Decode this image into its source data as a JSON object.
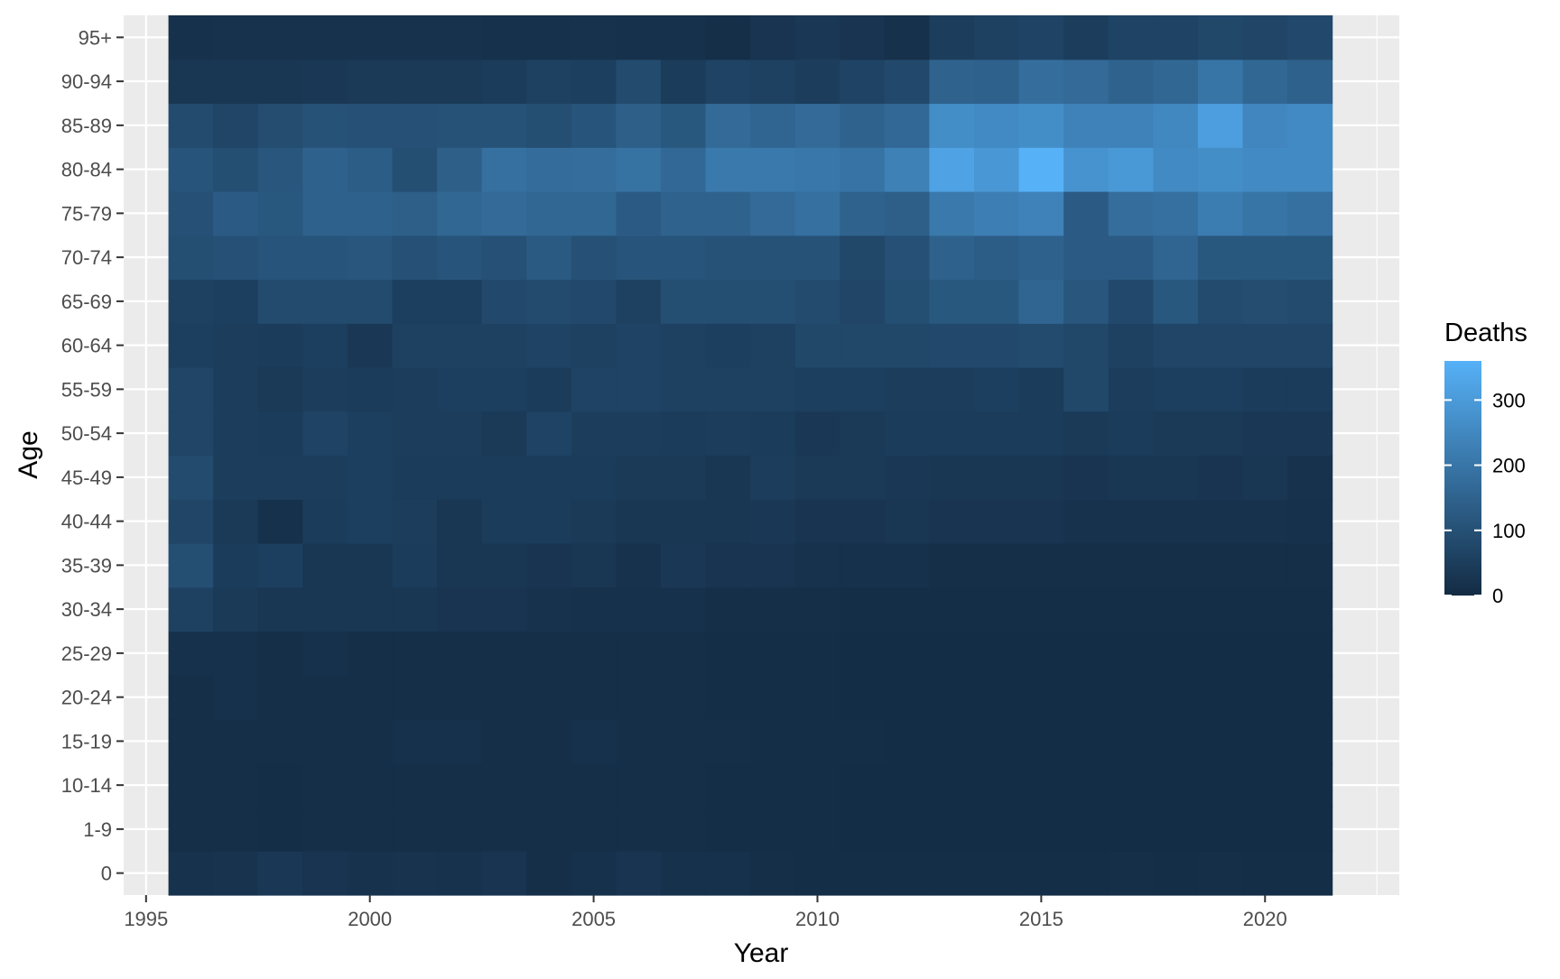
{
  "chart_data": {
    "type": "heatmap",
    "xlabel": "Year",
    "ylabel": "Age",
    "x": [
      1996,
      1997,
      1998,
      1999,
      2000,
      2001,
      2002,
      2003,
      2004,
      2005,
      2006,
      2007,
      2008,
      2009,
      2010,
      2011,
      2012,
      2013,
      2014,
      2015,
      2016,
      2017,
      2018,
      2019,
      2020,
      2021
    ],
    "xlim": [
      1994.5,
      2023
    ],
    "x_ticks": [
      "1995",
      "2000",
      "2005",
      "2010",
      "2015",
      "2020"
    ],
    "y_categories": [
      "0",
      "1-9",
      "10-14",
      "15-19",
      "20-24",
      "25-29",
      "30-34",
      "35-39",
      "40-44",
      "45-49",
      "50-54",
      "55-59",
      "60-64",
      "65-69",
      "70-74",
      "75-79",
      "80-84",
      "85-89",
      "90-94",
      "95+"
    ],
    "legend": {
      "title": "Deaths",
      "ticks": [
        "0",
        "100",
        "200",
        "300"
      ],
      "min": 0,
      "max": 360,
      "low_color": "#132B43",
      "high_color": "#56B1F7",
      "placement": "right"
    },
    "values": [
      [
        20,
        22,
        35,
        25,
        20,
        22,
        20,
        25,
        12,
        15,
        25,
        15,
        15,
        10,
        8,
        8,
        8,
        8,
        8,
        8,
        8,
        10,
        8,
        10,
        8,
        8
      ],
      [
        10,
        12,
        8,
        10,
        12,
        10,
        10,
        10,
        10,
        10,
        10,
        10,
        8,
        8,
        8,
        5,
        5,
        5,
        5,
        5,
        5,
        5,
        5,
        5,
        5,
        5
      ],
      [
        10,
        12,
        8,
        10,
        12,
        10,
        10,
        10,
        10,
        10,
        10,
        10,
        8,
        8,
        8,
        5,
        5,
        5,
        5,
        5,
        5,
        5,
        5,
        5,
        5,
        5
      ],
      [
        12,
        12,
        10,
        10,
        12,
        15,
        15,
        12,
        12,
        15,
        10,
        10,
        10,
        8,
        8,
        8,
        5,
        5,
        5,
        5,
        5,
        5,
        5,
        5,
        5,
        5
      ],
      [
        12,
        15,
        12,
        12,
        12,
        10,
        10,
        12,
        12,
        10,
        10,
        10,
        8,
        8,
        8,
        5,
        5,
        5,
        5,
        5,
        5,
        5,
        5,
        5,
        5,
        5
      ],
      [
        15,
        15,
        12,
        15,
        12,
        12,
        12,
        12,
        12,
        10,
        10,
        10,
        8,
        8,
        8,
        5,
        5,
        5,
        5,
        5,
        5,
        5,
        5,
        5,
        5,
        5
      ],
      [
        60,
        40,
        30,
        30,
        30,
        30,
        25,
        25,
        20,
        15,
        15,
        15,
        12,
        12,
        10,
        8,
        8,
        8,
        8,
        8,
        8,
        8,
        8,
        8,
        8,
        8
      ],
      [
        95,
        45,
        55,
        30,
        30,
        45,
        30,
        30,
        25,
        30,
        20,
        35,
        25,
        25,
        18,
        15,
        15,
        12,
        12,
        10,
        12,
        12,
        12,
        10,
        10,
        10
      ],
      [
        70,
        40,
        15,
        45,
        55,
        50,
        30,
        45,
        45,
        40,
        30,
        30,
        30,
        35,
        25,
        25,
        30,
        25,
        25,
        25,
        20,
        20,
        20,
        20,
        20,
        15
      ],
      [
        85,
        50,
        50,
        50,
        55,
        45,
        45,
        45,
        45,
        45,
        40,
        40,
        30,
        50,
        40,
        40,
        35,
        30,
        30,
        30,
        25,
        30,
        30,
        25,
        30,
        20
      ],
      [
        70,
        50,
        45,
        65,
        55,
        50,
        50,
        40,
        65,
        50,
        50,
        45,
        50,
        45,
        35,
        40,
        45,
        45,
        45,
        45,
        40,
        45,
        40,
        40,
        35,
        35
      ],
      [
        70,
        50,
        40,
        50,
        45,
        50,
        55,
        55,
        45,
        65,
        65,
        60,
        60,
        60,
        55,
        55,
        50,
        50,
        55,
        45,
        75,
        50,
        55,
        55,
        45,
        45
      ],
      [
        55,
        50,
        45,
        55,
        35,
        60,
        60,
        60,
        65,
        60,
        65,
        60,
        55,
        60,
        75,
        75,
        75,
        80,
        80,
        85,
        75,
        60,
        70,
        70,
        70,
        70
      ],
      [
        60,
        55,
        85,
        85,
        85,
        55,
        55,
        80,
        85,
        80,
        60,
        95,
        95,
        95,
        85,
        70,
        95,
        120,
        120,
        155,
        115,
        80,
        120,
        85,
        90,
        85
      ],
      [
        95,
        100,
        110,
        110,
        115,
        100,
        110,
        100,
        125,
        100,
        110,
        110,
        105,
        105,
        105,
        75,
        100,
        145,
        135,
        145,
        130,
        130,
        155,
        120,
        120,
        120
      ],
      [
        100,
        130,
        120,
        145,
        145,
        140,
        160,
        170,
        160,
        160,
        130,
        150,
        150,
        170,
        185,
        150,
        140,
        210,
        225,
        235,
        130,
        180,
        185,
        220,
        200,
        185
      ],
      [
        110,
        95,
        115,
        145,
        135,
        95,
        140,
        185,
        175,
        180,
        190,
        165,
        210,
        210,
        205,
        195,
        230,
        320,
        290,
        360,
        280,
        295,
        255,
        265,
        255,
        255
      ],
      [
        85,
        70,
        90,
        105,
        100,
        100,
        105,
        105,
        95,
        110,
        140,
        120,
        170,
        155,
        170,
        150,
        165,
        265,
        255,
        265,
        235,
        235,
        250,
        310,
        245,
        255
      ],
      [
        30,
        30,
        30,
        35,
        40,
        40,
        40,
        45,
        60,
        55,
        85,
        45,
        65,
        60,
        50,
        65,
        80,
        150,
        145,
        180,
        170,
        150,
        160,
        200,
        160,
        145
      ],
      [
        15,
        20,
        20,
        20,
        20,
        20,
        20,
        15,
        15,
        20,
        15,
        15,
        10,
        25,
        35,
        25,
        15,
        50,
        60,
        65,
        50,
        65,
        65,
        75,
        70,
        80
      ]
    ]
  }
}
